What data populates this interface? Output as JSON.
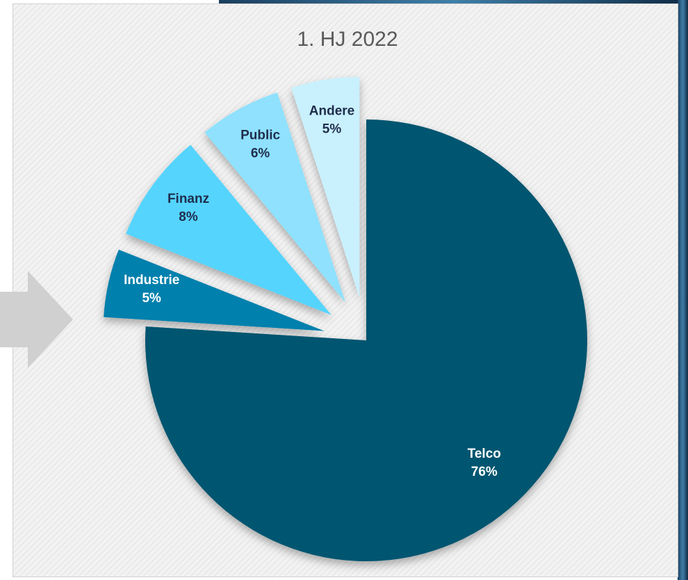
{
  "chart_data": {
    "type": "pie",
    "title": "1. HJ 2022",
    "categories": [
      "Telco",
      "Industrie",
      "Finanz",
      "Public",
      "Andere"
    ],
    "values": [
      76,
      5,
      8,
      6,
      5
    ],
    "value_labels": [
      "76%",
      "5%",
      "8%",
      "6%",
      "5%"
    ],
    "colors": [
      "#03546f",
      "#0580ad",
      "#55d4fd",
      "#8fe1fd",
      "#c9f0fd"
    ],
    "label_colors": [
      "#ffffff",
      "#ffffff",
      "#1f2d4d",
      "#1f2d4d",
      "#1f2d4d"
    ],
    "exploded": [
      false,
      true,
      true,
      true,
      true
    ]
  }
}
